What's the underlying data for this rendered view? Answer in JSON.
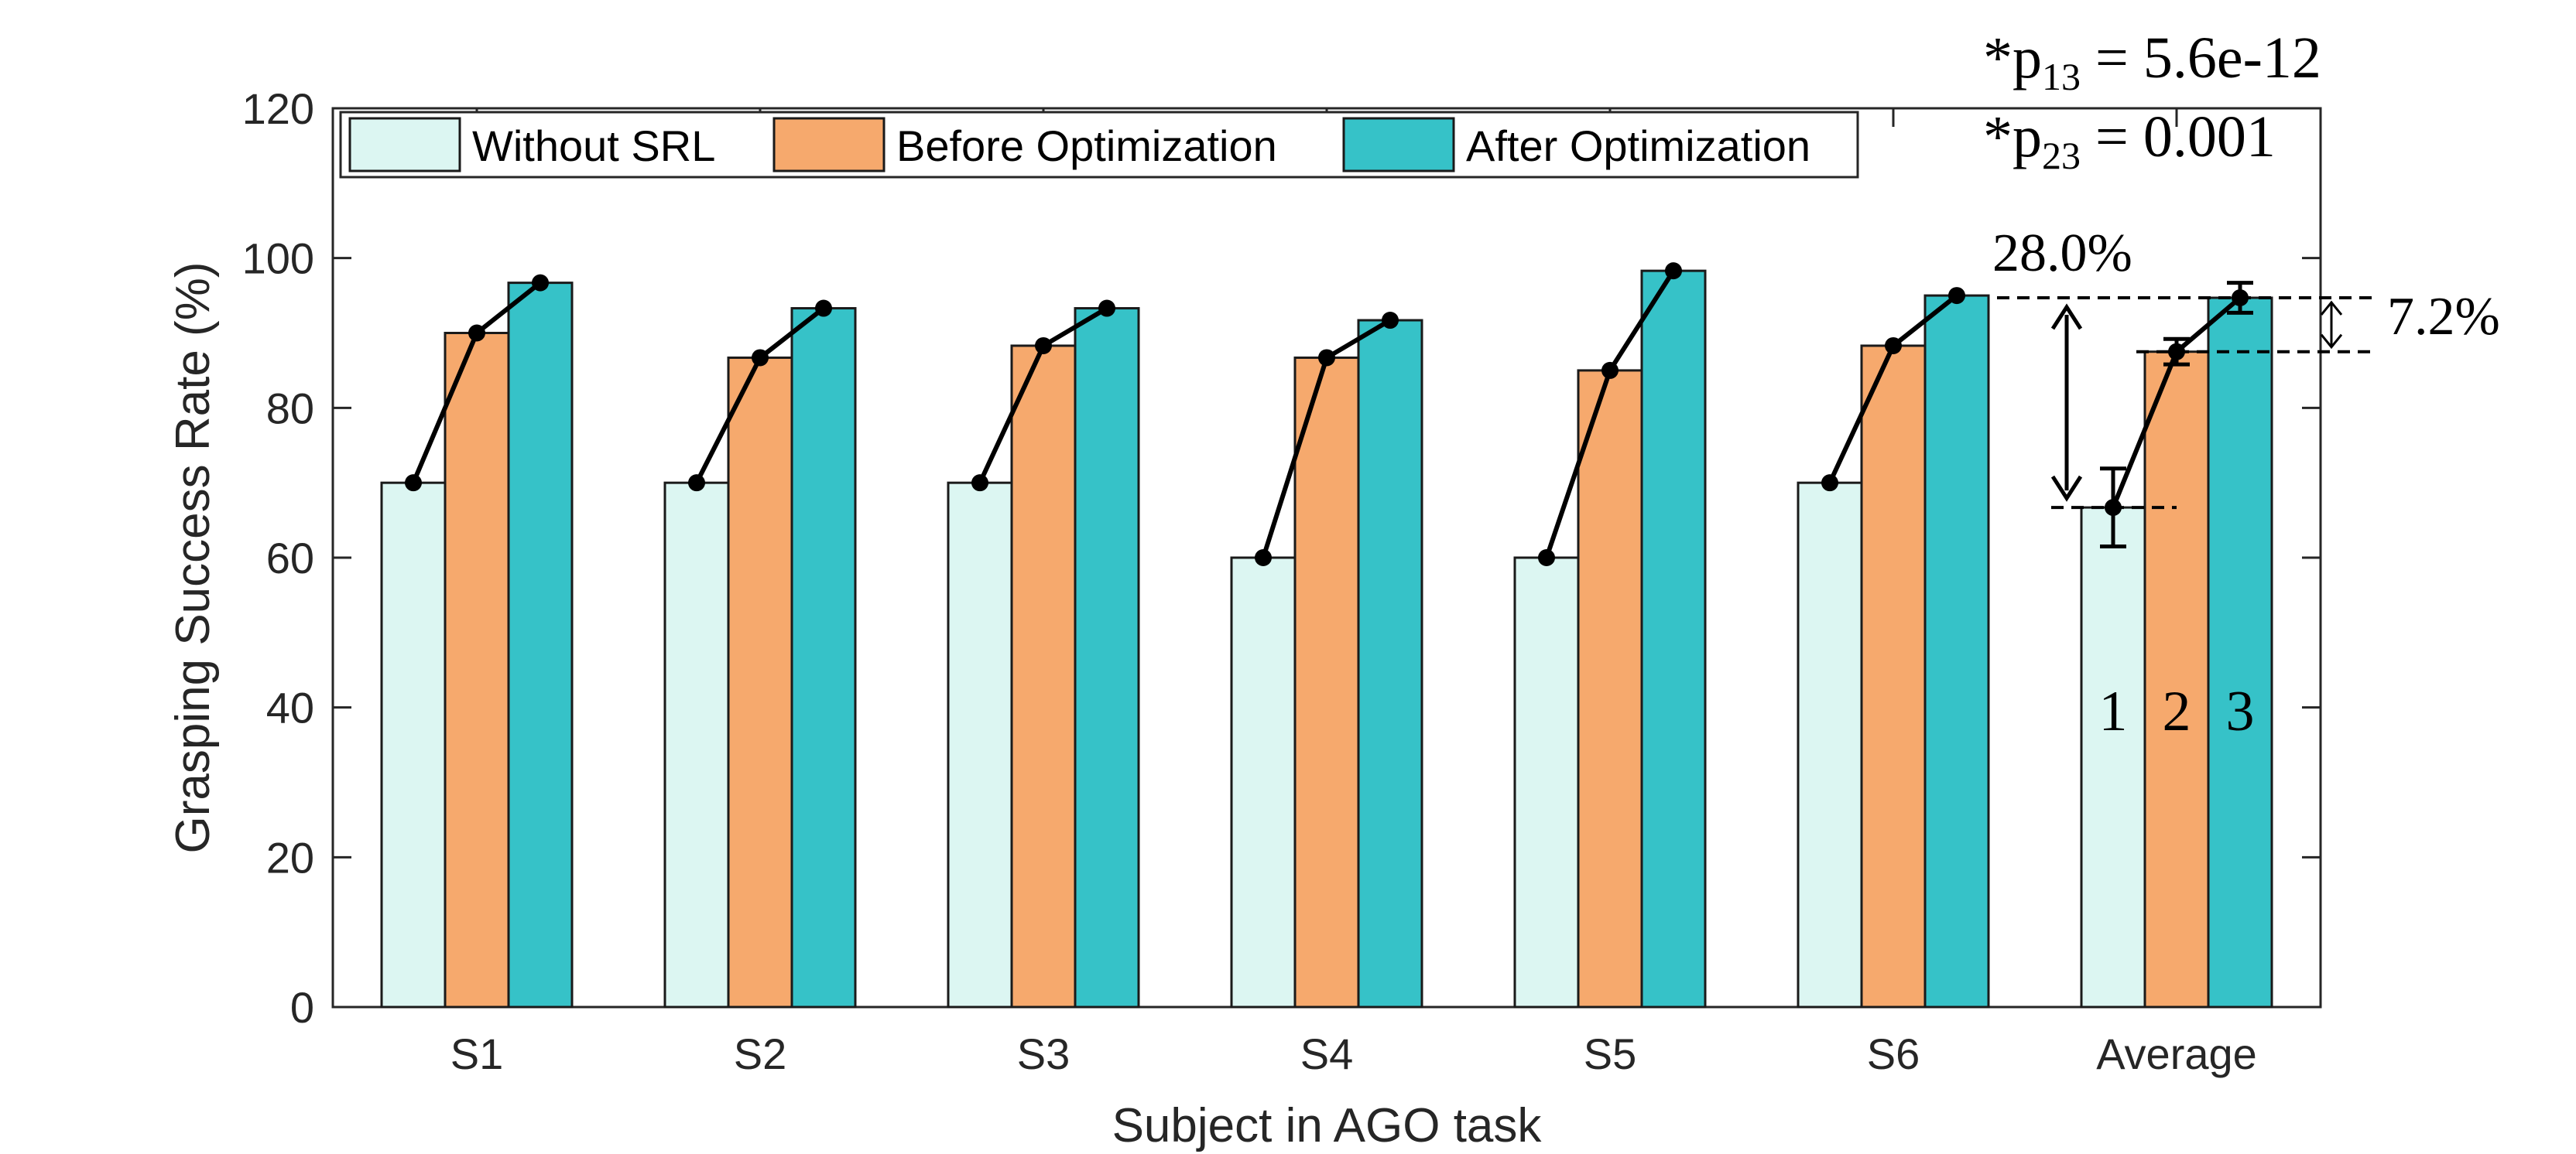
{
  "chart_data": {
    "type": "bar",
    "xlabel": "Subject in AGO task",
    "ylabel": "Grasping Success Rate (%)",
    "ylim": [
      0,
      120
    ],
    "yticks": [
      0,
      20,
      40,
      60,
      80,
      100,
      120
    ],
    "categories": [
      "S1",
      "S2",
      "S3",
      "S4",
      "S5",
      "S6",
      "Average"
    ],
    "series": [
      {
        "name": "Without SRL",
        "color": "#dcf6f2",
        "values": [
          70,
          70,
          70,
          60,
          60,
          70,
          66.7
        ]
      },
      {
        "name": "Before Optimization",
        "color": "#f6a96d",
        "values": [
          90,
          86.7,
          88.3,
          86.7,
          85,
          88.3,
          87.5
        ]
      },
      {
        "name": "After Optimization",
        "color": "#36c2c8",
        "values": [
          96.7,
          93.3,
          93.3,
          91.7,
          98.3,
          95,
          94.7
        ]
      }
    ],
    "error_bars": {
      "category": "Average",
      "errors": [
        5.2,
        1.7,
        2.0
      ]
    },
    "legend_position": "top-left",
    "annotations": {
      "p13_prefix": "*p",
      "p13_sub": "13",
      "p13_value": " = 5.6e-12",
      "p23_prefix": "*p",
      "p23_sub": "23",
      "p23_value": " = 0.001",
      "improvement_total": "28.0%",
      "improvement_opt": "7.2%",
      "bar_index_labels": [
        "1",
        "2",
        "3"
      ]
    }
  }
}
